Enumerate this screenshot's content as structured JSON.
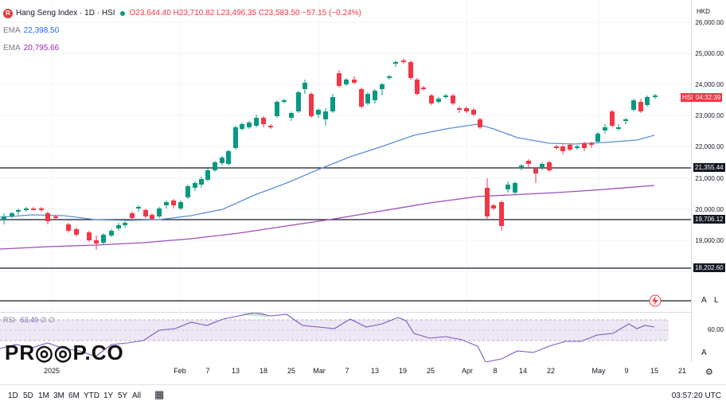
{
  "header": {
    "symbol": "Hang Seng Index · 1D · HSI",
    "ohlc": "O23,644.40 H23,710.82 L23,496.35 C23,583.50 −57.15 (−0.24%)",
    "ema1_label": "EMA",
    "ema1_value": "22,398.50",
    "ema2_label": "EMA",
    "ema2_value": "20,795.66",
    "logo_letter": "R"
  },
  "price_axis": {
    "currency": "HKD",
    "labels": [
      "26,000.00",
      "25,000.00",
      "24,000.00",
      "23,000.00",
      "22,000.00",
      "21,000.00",
      "20,000.00",
      "19,000.00"
    ],
    "hsi_tag": "HSI",
    "hsi_time": "04:32:39",
    "level_tags": [
      "21,355.44",
      "19,706.12",
      "18,202.60"
    ],
    "auto_label": "A",
    "log_label": "L",
    "rsi_labels": [
      "60.00",
      "A"
    ]
  },
  "rsi": {
    "label": "RSI",
    "value": "63.49",
    "extra": "∅ ∅"
  },
  "time_axis": {
    "ticks": [
      "2025",
      "Feb",
      "7",
      "13",
      "18",
      "25",
      "Mar",
      "7",
      "13",
      "19",
      "25",
      "Apr",
      "8",
      "14",
      "22",
      "May",
      "9",
      "15",
      "21"
    ]
  },
  "bottom_bar": {
    "timeframes": [
      "1D",
      "5D",
      "1M",
      "3M",
      "6M",
      "YTD",
      "1Y",
      "5Y",
      "All"
    ],
    "clock": "03:57:20 UTC"
  },
  "watermark": "PR◎◎P.CO",
  "colors": {
    "up": "#089981",
    "down": "#f23645",
    "ema1": "#5b8fd6",
    "ema2": "#9c4db8",
    "rsi_line": "#7e57c2",
    "rsi_band": "#ede7f6"
  }
}
